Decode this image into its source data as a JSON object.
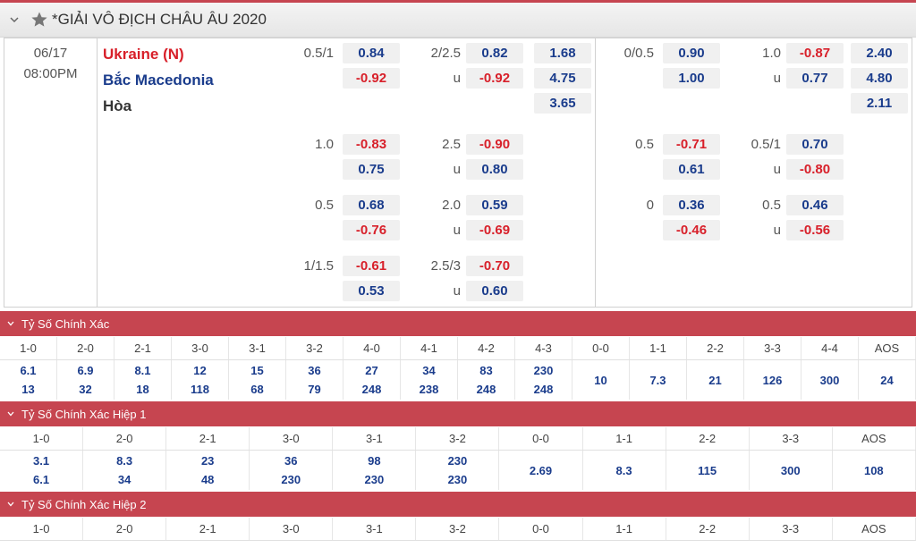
{
  "league": {
    "title": "*GIẢI VÔ ĐỊCH CHÂU ÂU 2020"
  },
  "match": {
    "date": "06/17",
    "time": "08:00PM",
    "home": "Ukraine (N)",
    "away": "Bắc Macedonia",
    "draw": "Hòa"
  },
  "ft": {
    "rows": [
      {
        "hcap": "0.5/1",
        "hcap_home": "0.84",
        "hcap_away": "-0.92",
        "ou": "2/2.5",
        "ou_u": "u",
        "ou_over": "0.82",
        "ou_under": "-0.92",
        "x12_1": "1.68",
        "x12_2": "4.75",
        "x12_x": "3.65"
      },
      {
        "hcap": "1.0",
        "hcap_home": "-0.83",
        "hcap_away": "0.75",
        "ou": "2.5",
        "ou_u": "u",
        "ou_over": "-0.90",
        "ou_under": "0.80"
      },
      {
        "hcap": "0.5",
        "hcap_home": "0.68",
        "hcap_away": "-0.76",
        "ou": "2.0",
        "ou_u": "u",
        "ou_over": "0.59",
        "ou_under": "-0.69"
      },
      {
        "hcap": "1/1.5",
        "hcap_home": "-0.61",
        "hcap_away": "0.53",
        "ou": "2.5/3",
        "ou_u": "u",
        "ou_over": "-0.70",
        "ou_under": "0.60"
      }
    ]
  },
  "h1": {
    "rows": [
      {
        "hcap": "0/0.5",
        "hcap_home": "0.90",
        "hcap_away": "1.00",
        "ou": "1.0",
        "ou_u": "u",
        "ou_over": "-0.87",
        "ou_under": "0.77",
        "x12_1": "2.40",
        "x12_2": "4.80",
        "x12_x": "2.11"
      },
      {
        "hcap": "0.5",
        "hcap_home": "-0.71",
        "hcap_away": "0.61",
        "ou": "0.5/1",
        "ou_u": "u",
        "ou_over": "0.70",
        "ou_under": "-0.80"
      },
      {
        "hcap": "0",
        "hcap_home": "0.36",
        "hcap_away": "-0.46",
        "ou": "0.5",
        "ou_u": "u",
        "ou_over": "0.46",
        "ou_under": "-0.56"
      }
    ]
  },
  "cs": {
    "title": "Tỷ Số Chính Xác",
    "headers": [
      "1-0",
      "2-0",
      "2-1",
      "3-0",
      "3-1",
      "3-2",
      "4-0",
      "4-1",
      "4-2",
      "4-3",
      "0-0",
      "1-1",
      "2-2",
      "3-3",
      "4-4",
      "AOS"
    ],
    "top": [
      "6.1",
      "6.9",
      "8.1",
      "12",
      "15",
      "36",
      "27",
      "34",
      "83",
      "230",
      "10",
      "7.3",
      "21",
      "126",
      "300",
      "24"
    ],
    "bottom": [
      "13",
      "32",
      "18",
      "118",
      "68",
      "79",
      "248",
      "238",
      "248",
      "248",
      "",
      "",
      "",
      "",
      "",
      ""
    ]
  },
  "cs1": {
    "title": "Tỷ Số Chính Xác Hiệp 1",
    "headers": [
      "1-0",
      "2-0",
      "2-1",
      "3-0",
      "3-1",
      "3-2",
      "0-0",
      "1-1",
      "2-2",
      "3-3",
      "AOS"
    ],
    "top": [
      "3.1",
      "8.3",
      "23",
      "36",
      "98",
      "230",
      "2.69",
      "8.3",
      "115",
      "300",
      "108"
    ],
    "bottom": [
      "6.1",
      "34",
      "48",
      "230",
      "230",
      "230",
      "",
      "",
      "",
      "",
      ""
    ]
  },
  "cs2": {
    "title": "Tỷ Số Chính Xác Hiệp 2",
    "headers": [
      "1-0",
      "2-0",
      "2-1",
      "3-0",
      "3-1",
      "3-2",
      "0-0",
      "1-1",
      "2-2",
      "3-3",
      "AOS"
    ]
  },
  "colors": {
    "accent": "#c64550",
    "positive": "#1a3c8c",
    "negative": "#d8202a"
  }
}
